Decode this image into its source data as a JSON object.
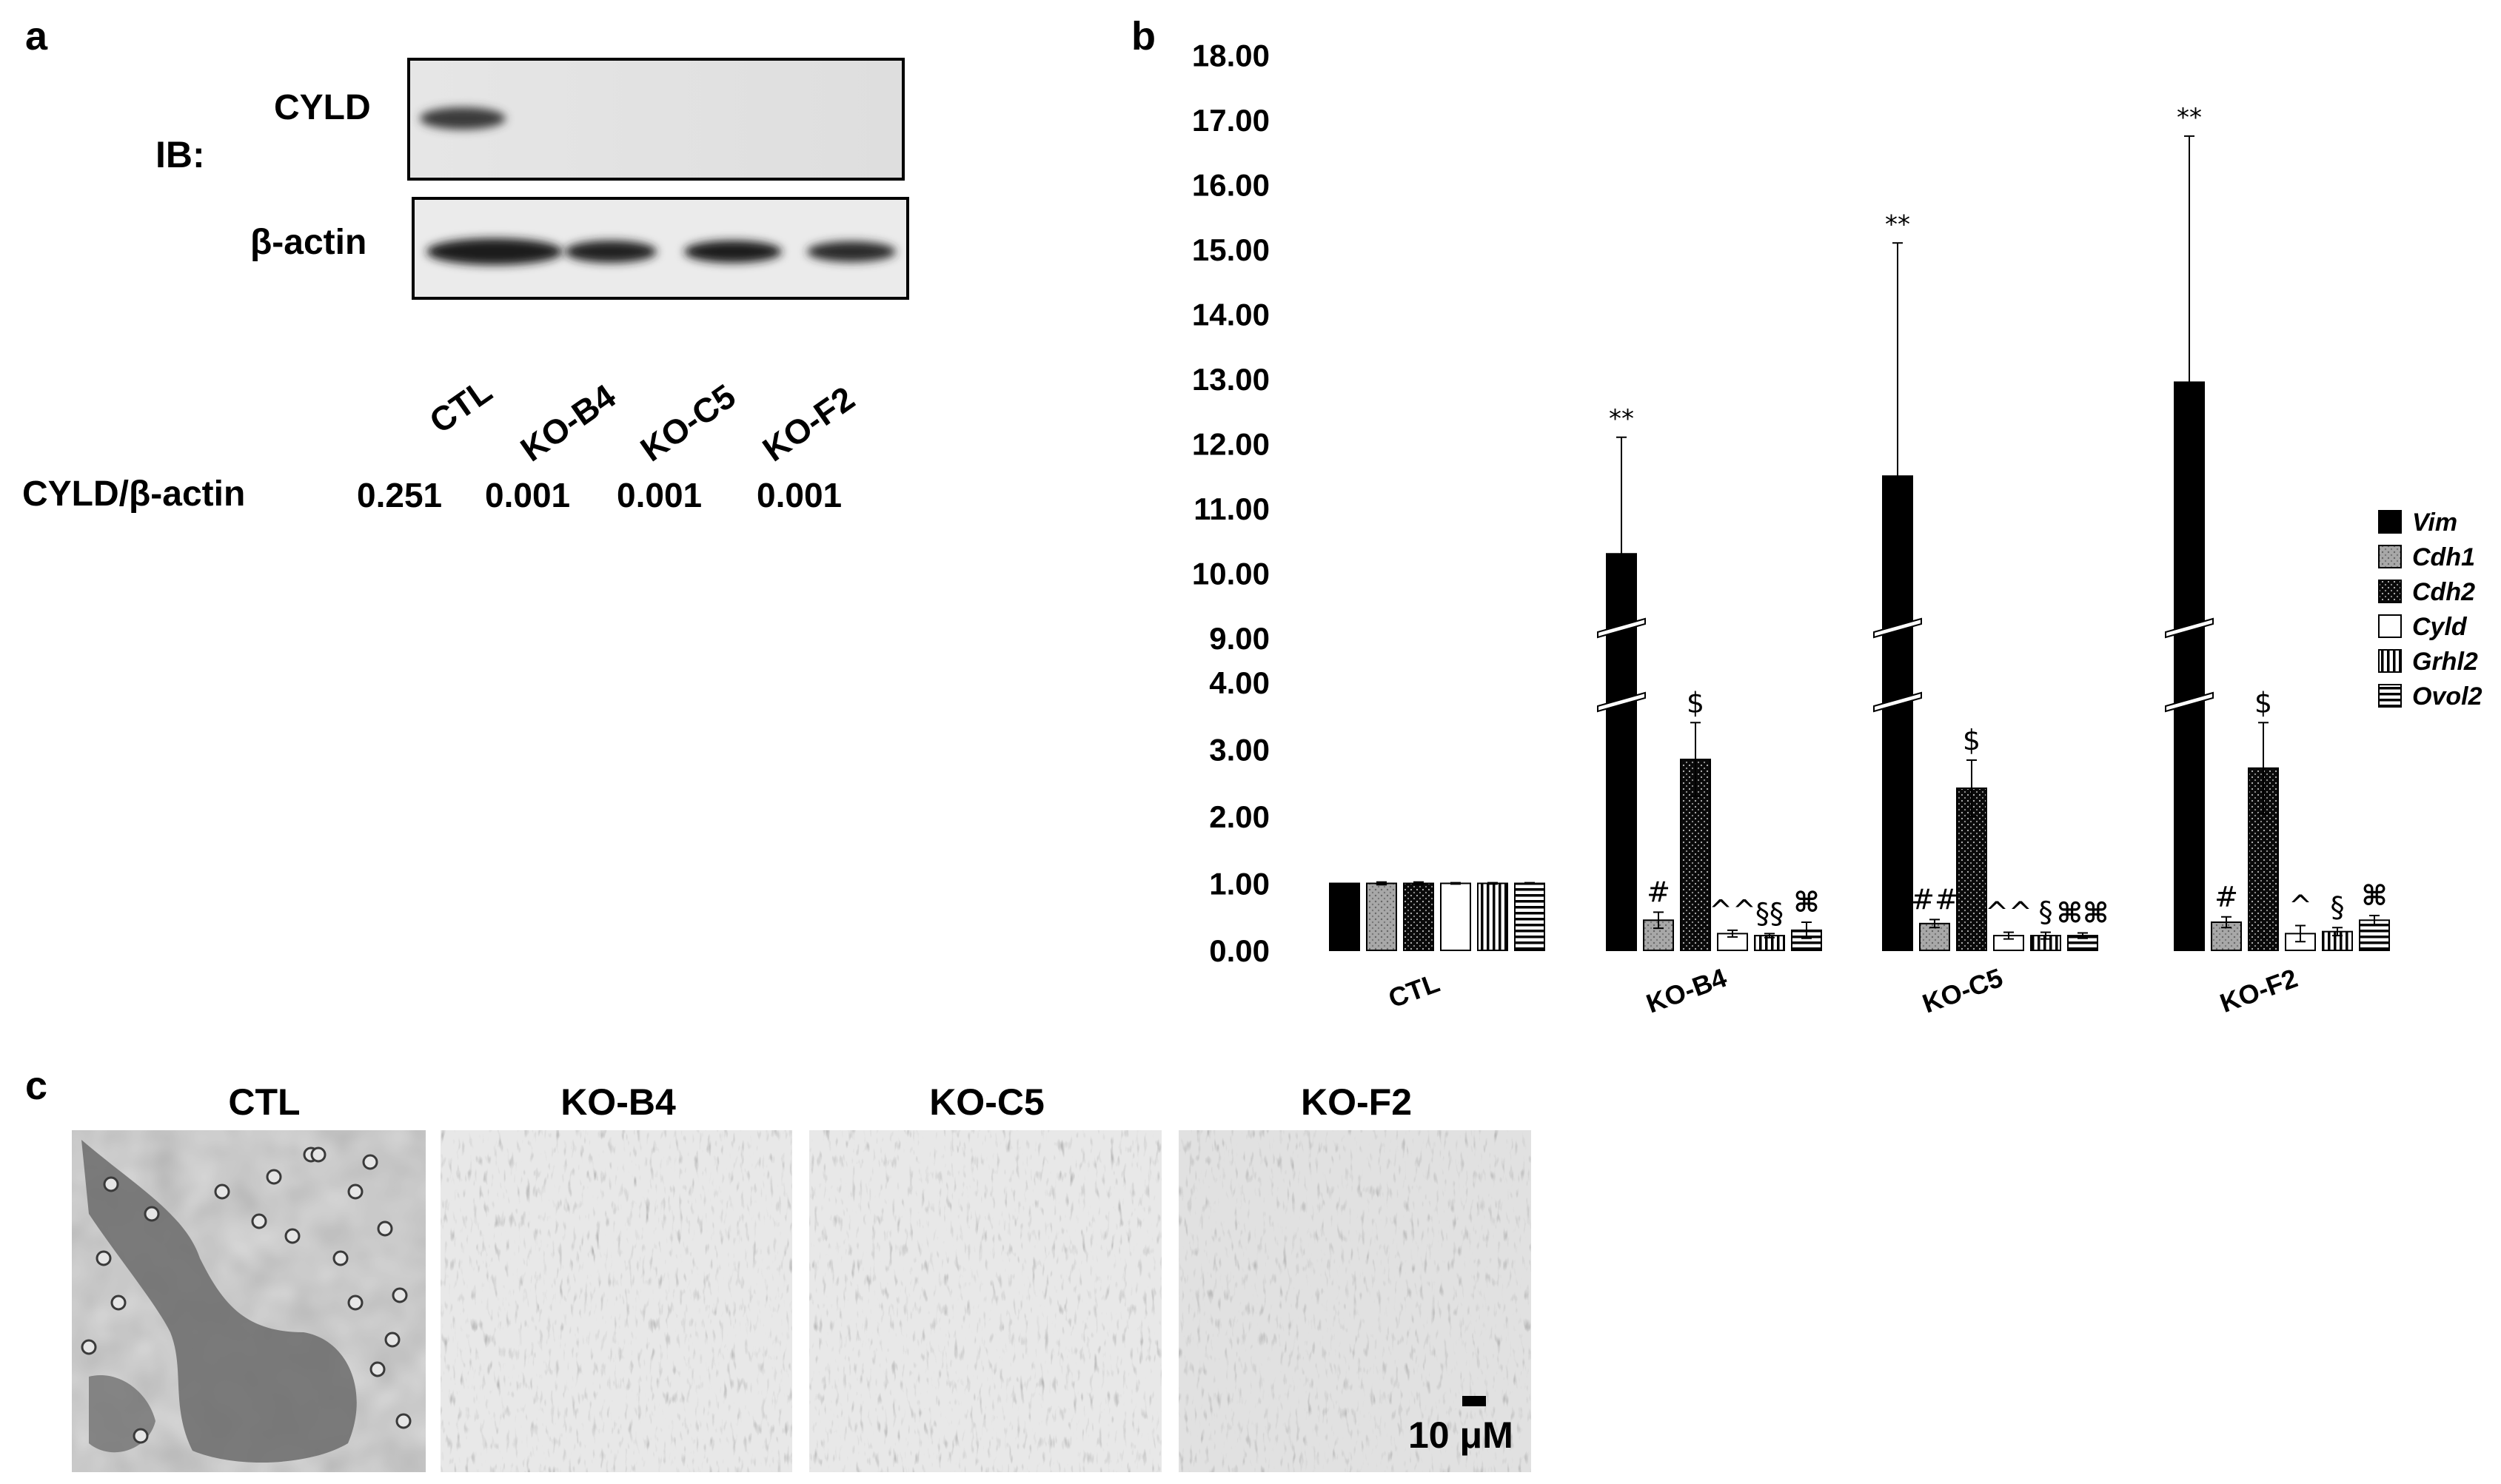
{
  "panels": {
    "a": "a",
    "b": "b",
    "c": "c"
  },
  "blot": {
    "ib_label": "IB:",
    "bands": [
      "CYLD",
      "β-actin"
    ],
    "lanes": [
      "CTL",
      "KO-B4",
      "KO-C5",
      "KO-F2"
    ],
    "ratio_label": "CYLD/β-actin",
    "ratio_values": [
      "0.251",
      "0.001",
      "0.001",
      "0.001"
    ]
  },
  "chart_data": {
    "type": "bar",
    "categories": [
      "CTL",
      "KO-B4",
      "KO-C5",
      "KO-F2"
    ],
    "y_ticks_lower": [
      "0.00",
      "1.00",
      "2.00",
      "3.00",
      "4.00"
    ],
    "y_ticks_upper": [
      "9.00",
      "10.00",
      "11.00",
      "12.00",
      "13.00",
      "14.00",
      "15.00",
      "16.00",
      "17.00",
      "18.00"
    ],
    "axis_break": [
      4,
      9
    ],
    "series": [
      {
        "name": "Vim",
        "pattern": "solid-black",
        "values": [
          1.0,
          10.3,
          11.5,
          12.95
        ],
        "errors": [
          0.0,
          1.8,
          3.6,
          3.8
        ],
        "annotations": [
          "",
          "**",
          "**",
          "**"
        ]
      },
      {
        "name": "Cdh1",
        "pattern": "gray-dotted",
        "values": [
          1.0,
          0.45,
          0.4,
          0.42
        ],
        "errors": [
          0.02,
          0.12,
          0.06,
          0.08
        ],
        "annotations": [
          "",
          "#",
          "##",
          "#"
        ]
      },
      {
        "name": "Cdh2",
        "pattern": "black-dotted",
        "values": [
          1.0,
          2.85,
          2.42,
          2.72
        ],
        "errors": [
          0.02,
          0.55,
          0.42,
          0.68
        ],
        "annotations": [
          "",
          "$",
          "$",
          "$"
        ]
      },
      {
        "name": "Cyld",
        "pattern": "white",
        "values": [
          1.0,
          0.25,
          0.22,
          0.25
        ],
        "errors": [
          0.01,
          0.05,
          0.05,
          0.12
        ],
        "annotations": [
          "",
          "^^",
          "^^",
          "^"
        ]
      },
      {
        "name": "Grhl2",
        "pattern": "vertical-stripes",
        "values": [
          1.0,
          0.22,
          0.22,
          0.28
        ],
        "errors": [
          0.01,
          0.03,
          0.05,
          0.06
        ],
        "annotations": [
          "",
          "§§",
          "§",
          "§"
        ]
      },
      {
        "name": "Ovol2",
        "pattern": "horizontal-stripes",
        "values": [
          1.0,
          0.3,
          0.22,
          0.45
        ],
        "errors": [
          0.01,
          0.12,
          0.04,
          0.07
        ],
        "annotations": [
          "",
          "⌘",
          "⌘⌘",
          "⌘"
        ]
      }
    ],
    "legend_position": "right",
    "grid": false
  },
  "micrographs": {
    "titles": [
      "CTL",
      "KO-B4",
      "KO-C5",
      "KO-F2"
    ],
    "scale_bar": "10 μM"
  },
  "colors": {
    "ink": "#000000",
    "gray_fill": "#a8a8a8",
    "photo_bg": "#9a9a9a"
  }
}
